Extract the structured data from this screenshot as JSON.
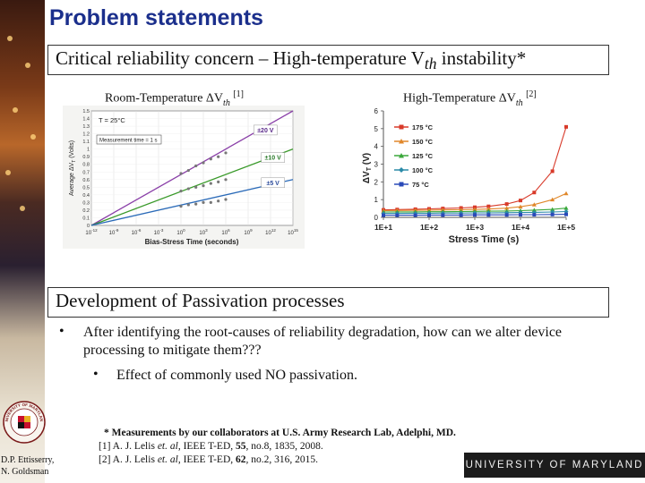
{
  "slide": {
    "title": "Problem statements",
    "box1": "Critical reliability concern – High-temperature V",
    "box1_sub": "th",
    "box1_tail": " instability*",
    "box2": "Development of Passivation processes"
  },
  "chart_left": {
    "caption_pre": "Room-Temperature ΔV",
    "caption_sub": "th",
    "caption_ref": "[1]",
    "note_temp": "T = 25°C",
    "note_time": "Measurement time = 1 s",
    "ylabel": "Average ΔV",
    "ylabel_sub": "T",
    "ylabel_unit": " (Volts)",
    "xlabel": "Bias-Stress Time (seconds)",
    "y_ticks": [
      "1.5",
      "1.4",
      "1.3",
      "1.2",
      "1.1",
      "1",
      "0.9",
      "0.8",
      "0.7",
      "0.6",
      "0.5",
      "0.4",
      "0.3",
      "0.2",
      "0.1",
      "0"
    ],
    "x_ticks": [
      {
        "base": "10",
        "exp": "-12"
      },
      {
        "base": "10",
        "exp": "-9"
      },
      {
        "base": "10",
        "exp": "-6"
      },
      {
        "base": "10",
        "exp": "-3"
      },
      {
        "base": "10",
        "exp": "0"
      },
      {
        "base": "10",
        "exp": "3"
      },
      {
        "base": "10",
        "exp": "6"
      },
      {
        "base": "10",
        "exp": "9"
      },
      {
        "base": "10",
        "exp": "12"
      },
      {
        "base": "10",
        "exp": "15"
      }
    ],
    "labels": [
      "±20 V",
      "±10 V",
      "±5 V"
    ]
  },
  "chart_right": {
    "caption_pre": "High-Temperature ΔV",
    "caption_sub": "th",
    "caption_ref": "[2]",
    "ylabel": "ΔV",
    "ylabel_sub": "T",
    "ylabel_unit": " (V)",
    "xlabel": "Stress Time (s)",
    "y_ticks": [
      "6",
      "5",
      "4",
      "3",
      "2",
      "1",
      "0"
    ],
    "x_ticks": [
      "1E+1",
      "1E+2",
      "1E+3",
      "1E+4",
      "1E+5"
    ],
    "legend": [
      "175 °C",
      "150 °C",
      "125 °C",
      "100 °C",
      "75 °C"
    ]
  },
  "chart_data": [
    {
      "type": "line",
      "title": "Room-Temperature ΔVth [1]",
      "xlabel": "Bias-Stress Time (seconds)",
      "ylabel": "Average ΔVT (Volts)",
      "x_scale": "log",
      "xlim": [
        1e-12,
        1000000000000000.0
      ],
      "ylim": [
        0,
        1.5
      ],
      "grid": true,
      "series": [
        {
          "name": "±20 V",
          "color": "#8a3fa8",
          "x": [
            1e-12,
            1000000000000000.0
          ],
          "y": [
            0.0,
            1.5
          ]
        },
        {
          "name": "±10 V",
          "color": "#3a9a2a",
          "x": [
            1e-12,
            1000000000000000.0
          ],
          "y": [
            0.0,
            1.0
          ]
        },
        {
          "name": "±5 V",
          "color": "#2a6ab8",
          "x": [
            1e-12,
            1000000000000000.0
          ],
          "y": [
            0.0,
            0.6
          ]
        }
      ],
      "points": {
        "±20 V": [
          [
            1,
            0.68
          ],
          [
            10,
            0.72
          ],
          [
            100,
            0.78
          ],
          [
            1000,
            0.82
          ],
          [
            10000,
            0.87
          ],
          [
            100000,
            0.9
          ],
          [
            1000000,
            0.95
          ]
        ],
        "±10 V": [
          [
            1,
            0.45
          ],
          [
            10,
            0.48
          ],
          [
            100,
            0.5
          ],
          [
            1000,
            0.52
          ],
          [
            10000,
            0.55
          ],
          [
            100000,
            0.57
          ],
          [
            1000000,
            0.6
          ]
        ],
        "±5 V": [
          [
            1,
            0.25
          ],
          [
            10,
            0.27
          ],
          [
            100,
            0.28
          ],
          [
            1000,
            0.3
          ],
          [
            10000,
            0.3
          ],
          [
            100000,
            0.32
          ],
          [
            1000000,
            0.34
          ]
        ]
      }
    },
    {
      "type": "line",
      "title": "High-Temperature ΔVth [2]",
      "xlabel": "Stress Time (s)",
      "ylabel": "ΔVT (V)",
      "x_scale": "log",
      "xlim": [
        10,
        100000
      ],
      "ylim": [
        0,
        6
      ],
      "grid": false,
      "legend_position": "left",
      "series": [
        {
          "name": "175 °C",
          "color": "#d83a2a",
          "marker": "square",
          "x": [
            10,
            20,
            50,
            100,
            200,
            500,
            1000,
            2000,
            5000,
            10000,
            20000,
            50000,
            100000
          ],
          "y": [
            0.42,
            0.44,
            0.46,
            0.48,
            0.5,
            0.53,
            0.57,
            0.62,
            0.75,
            0.95,
            1.4,
            2.6,
            5.1
          ]
        },
        {
          "name": "150 °C",
          "color": "#e0872a",
          "marker": "triangle",
          "x": [
            10,
            20,
            50,
            100,
            200,
            500,
            1000,
            2000,
            5000,
            10000,
            20000,
            50000,
            100000
          ],
          "y": [
            0.38,
            0.39,
            0.4,
            0.41,
            0.42,
            0.43,
            0.45,
            0.47,
            0.52,
            0.6,
            0.72,
            1.0,
            1.35
          ]
        },
        {
          "name": "125 °C",
          "color": "#3aa83a",
          "marker": "triangle",
          "x": [
            10,
            20,
            50,
            100,
            200,
            500,
            1000,
            2000,
            5000,
            10000,
            20000,
            50000,
            100000
          ],
          "y": [
            0.3,
            0.31,
            0.31,
            0.32,
            0.32,
            0.33,
            0.34,
            0.35,
            0.36,
            0.38,
            0.41,
            0.45,
            0.52
          ]
        },
        {
          "name": "100 °C",
          "color": "#2a8aa8",
          "marker": "diamond",
          "x": [
            10,
            20,
            50,
            100,
            200,
            500,
            1000,
            2000,
            5000,
            10000,
            20000,
            50000,
            100000
          ],
          "y": [
            0.22,
            0.22,
            0.23,
            0.23,
            0.24,
            0.24,
            0.25,
            0.25,
            0.26,
            0.27,
            0.28,
            0.3,
            0.33
          ]
        },
        {
          "name": "75 °C",
          "color": "#2a4ab8",
          "marker": "square",
          "x": [
            10,
            20,
            50,
            100,
            200,
            500,
            1000,
            2000,
            5000,
            10000,
            20000,
            50000,
            100000
          ],
          "y": [
            0.12,
            0.12,
            0.12,
            0.13,
            0.13,
            0.13,
            0.14,
            0.14,
            0.14,
            0.15,
            0.15,
            0.16,
            0.17
          ]
        }
      ]
    }
  ],
  "bullets": {
    "b1": "After identifying the root-causes of reliability degradation, how can we alter device",
    "b1_line2": "processing to mitigate them???",
    "b2": "Effect of commonly used NO passivation.",
    "marker": "•"
  },
  "references": {
    "note": "* Measurements by our collaborators at U.S. Army Research Lab, Adelphi, MD.",
    "r1_pre": "[1] A. J. Lelis ",
    "r1_etal": "et. al",
    "r1_mid": ", IEEE T-ED, ",
    "r1_vol": "55",
    "r1_tail": ", no.8, 1835, 2008.",
    "r2_pre": "[2] A. J. Lelis ",
    "r2_etal": "et. al",
    "r2_mid": ", IEEE T-ED, ",
    "r2_vol": "62",
    "r2_tail": ", no.2, 316, 2015."
  },
  "footer": {
    "authors_line1": "D.P. Ettisserry,",
    "authors_line2": "N. Goldsman",
    "university": "UNIVERSITY OF MARYLAND",
    "seal_text": "UNIVERSITY OF MARYLAND"
  },
  "colors": {
    "title": "#1b2f8c",
    "accent_175": "#d83a2a"
  }
}
